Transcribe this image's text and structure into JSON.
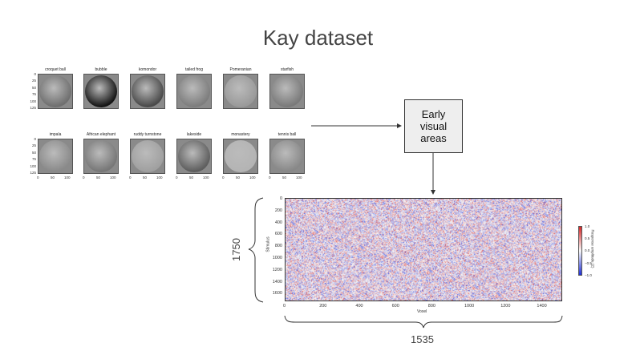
{
  "title": "Kay dataset",
  "image_grid": {
    "row1": [
      {
        "caption": "croquet ball",
        "shade": "#6f6f6f"
      },
      {
        "caption": "bubble",
        "shade": "#151515"
      },
      {
        "caption": "komondor",
        "shade": "#4a4a4a"
      },
      {
        "caption": "tailed frog",
        "shade": "#7d7d7d"
      },
      {
        "caption": "Pomeranian",
        "shade": "#9a9a9a"
      },
      {
        "caption": "starfish",
        "shade": "#7a7a7a"
      }
    ],
    "row2": [
      {
        "caption": "impala",
        "shade": "#8a8a8a"
      },
      {
        "caption": "African elephant",
        "shade": "#777777"
      },
      {
        "caption": "ruddy turnstone",
        "shade": "#a0a0a0"
      },
      {
        "caption": "lakeside",
        "shade": "#5e5e5e"
      },
      {
        "caption": "monastery",
        "shade": "#b4b4b4"
      },
      {
        "caption": "tennis ball",
        "shade": "#888888"
      }
    ],
    "y_ticks": [
      "0",
      "25",
      "50",
      "75",
      "100",
      "125"
    ],
    "x_ticks": [
      "0",
      "50",
      "100"
    ]
  },
  "process_box": {
    "line1": "Early",
    "line2": "visual",
    "line3": "areas"
  },
  "heatmap": {
    "ylabel": "Stimulus",
    "xlabel": "Voxel",
    "y_ticks": [
      "0",
      "200",
      "400",
      "600",
      "800",
      "1000",
      "1200",
      "1400",
      "1600"
    ],
    "x_ticks": [
      "0",
      "200",
      "400",
      "600",
      "800",
      "1000",
      "1200",
      "1400"
    ],
    "colorbar_ticks": [
      "1.0",
      "0.5",
      "0.0",
      "−0.5",
      "−1.0"
    ],
    "colorbar_label": "Response amplitude (Z)",
    "colors": {
      "pos": "#d62728",
      "neg": "#1f2fd6",
      "mid": "#f7f7f7"
    }
  },
  "dims": {
    "rows": "1750",
    "cols": "1535"
  }
}
